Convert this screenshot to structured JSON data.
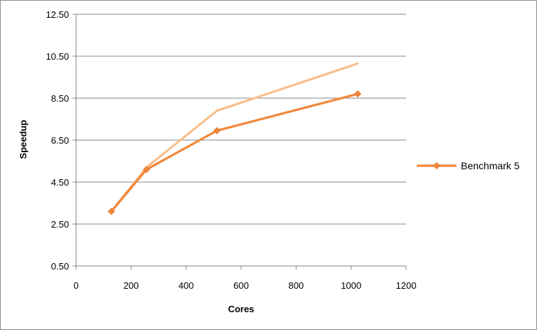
{
  "chart_data": {
    "type": "line",
    "title": "",
    "xlabel": "Cores",
    "ylabel": "Speedup",
    "xlim": [
      0,
      1200
    ],
    "ylim": [
      0.5,
      12.5
    ],
    "x_ticks": [
      "0",
      "200",
      "400",
      "600",
      "800",
      "1000",
      "1200"
    ],
    "y_ticks": [
      "0.50",
      "2.50",
      "4.50",
      "6.50",
      "8.50",
      "10.50",
      "12.50"
    ],
    "grid": "horizontal",
    "legend_position": "right",
    "series": [
      {
        "name": "",
        "color": "#f9c08f",
        "marker": "none",
        "x": [
          128,
          256,
          512,
          1024
        ],
        "y": [
          3.1,
          5.2,
          7.9,
          10.15
        ]
      },
      {
        "name": "Benchmark 5",
        "color": "#f0883a",
        "marker": "diamond",
        "x": [
          128,
          256,
          512,
          1024
        ],
        "y": [
          3.1,
          5.1,
          6.95,
          8.7
        ]
      }
    ]
  }
}
